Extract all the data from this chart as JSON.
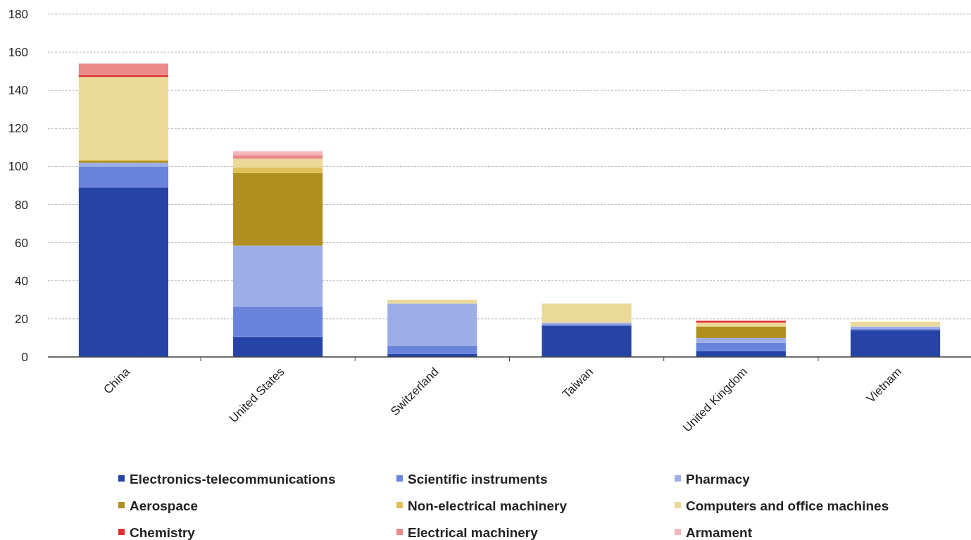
{
  "chart_data": {
    "type": "bar",
    "stacked": true,
    "categories": [
      "China",
      "United States",
      "Switzerland",
      "Taiwan",
      "United Kingdom",
      "Vietnam"
    ],
    "series": [
      {
        "name": "Electronics-telecommunications",
        "color": "#2644a6",
        "values": [
          89,
          10.5,
          1.5,
          16.5,
          3,
          14
        ]
      },
      {
        "name": "Scientific instruments",
        "color": "#6a84dc",
        "values": [
          11,
          16,
          4.5,
          0.5,
          4.5,
          1
        ]
      },
      {
        "name": "Pharmacy",
        "color": "#9dade6",
        "values": [
          2,
          32,
          22,
          1,
          2.5,
          1
        ]
      },
      {
        "name": "Aerospace",
        "color": "#b08f20",
        "values": [
          1,
          38,
          0,
          0,
          6,
          0
        ]
      },
      {
        "name": "Non-electrical machinery",
        "color": "#e0c058",
        "values": [
          0.5,
          3,
          0,
          0,
          0,
          0
        ]
      },
      {
        "name": "Computers and office machines",
        "color": "#ead998",
        "values": [
          43.5,
          4.5,
          2,
          10,
          2,
          2.5
        ]
      },
      {
        "name": "Chemistry",
        "color": "#e03030",
        "values": [
          1,
          0,
          0,
          0,
          1,
          0
        ]
      },
      {
        "name": "Electrical machinery",
        "color": "#ea8a8a",
        "values": [
          6,
          2,
          0,
          0,
          0,
          0
        ]
      },
      {
        "name": "Armament",
        "color": "#f4b8bc",
        "values": [
          0,
          2,
          0,
          0,
          0,
          0
        ]
      }
    ],
    "ylim": [
      0,
      180
    ],
    "yticks": [
      0,
      20,
      40,
      60,
      80,
      100,
      120,
      140,
      160,
      180
    ],
    "grid": "y",
    "legend": "bottom"
  }
}
